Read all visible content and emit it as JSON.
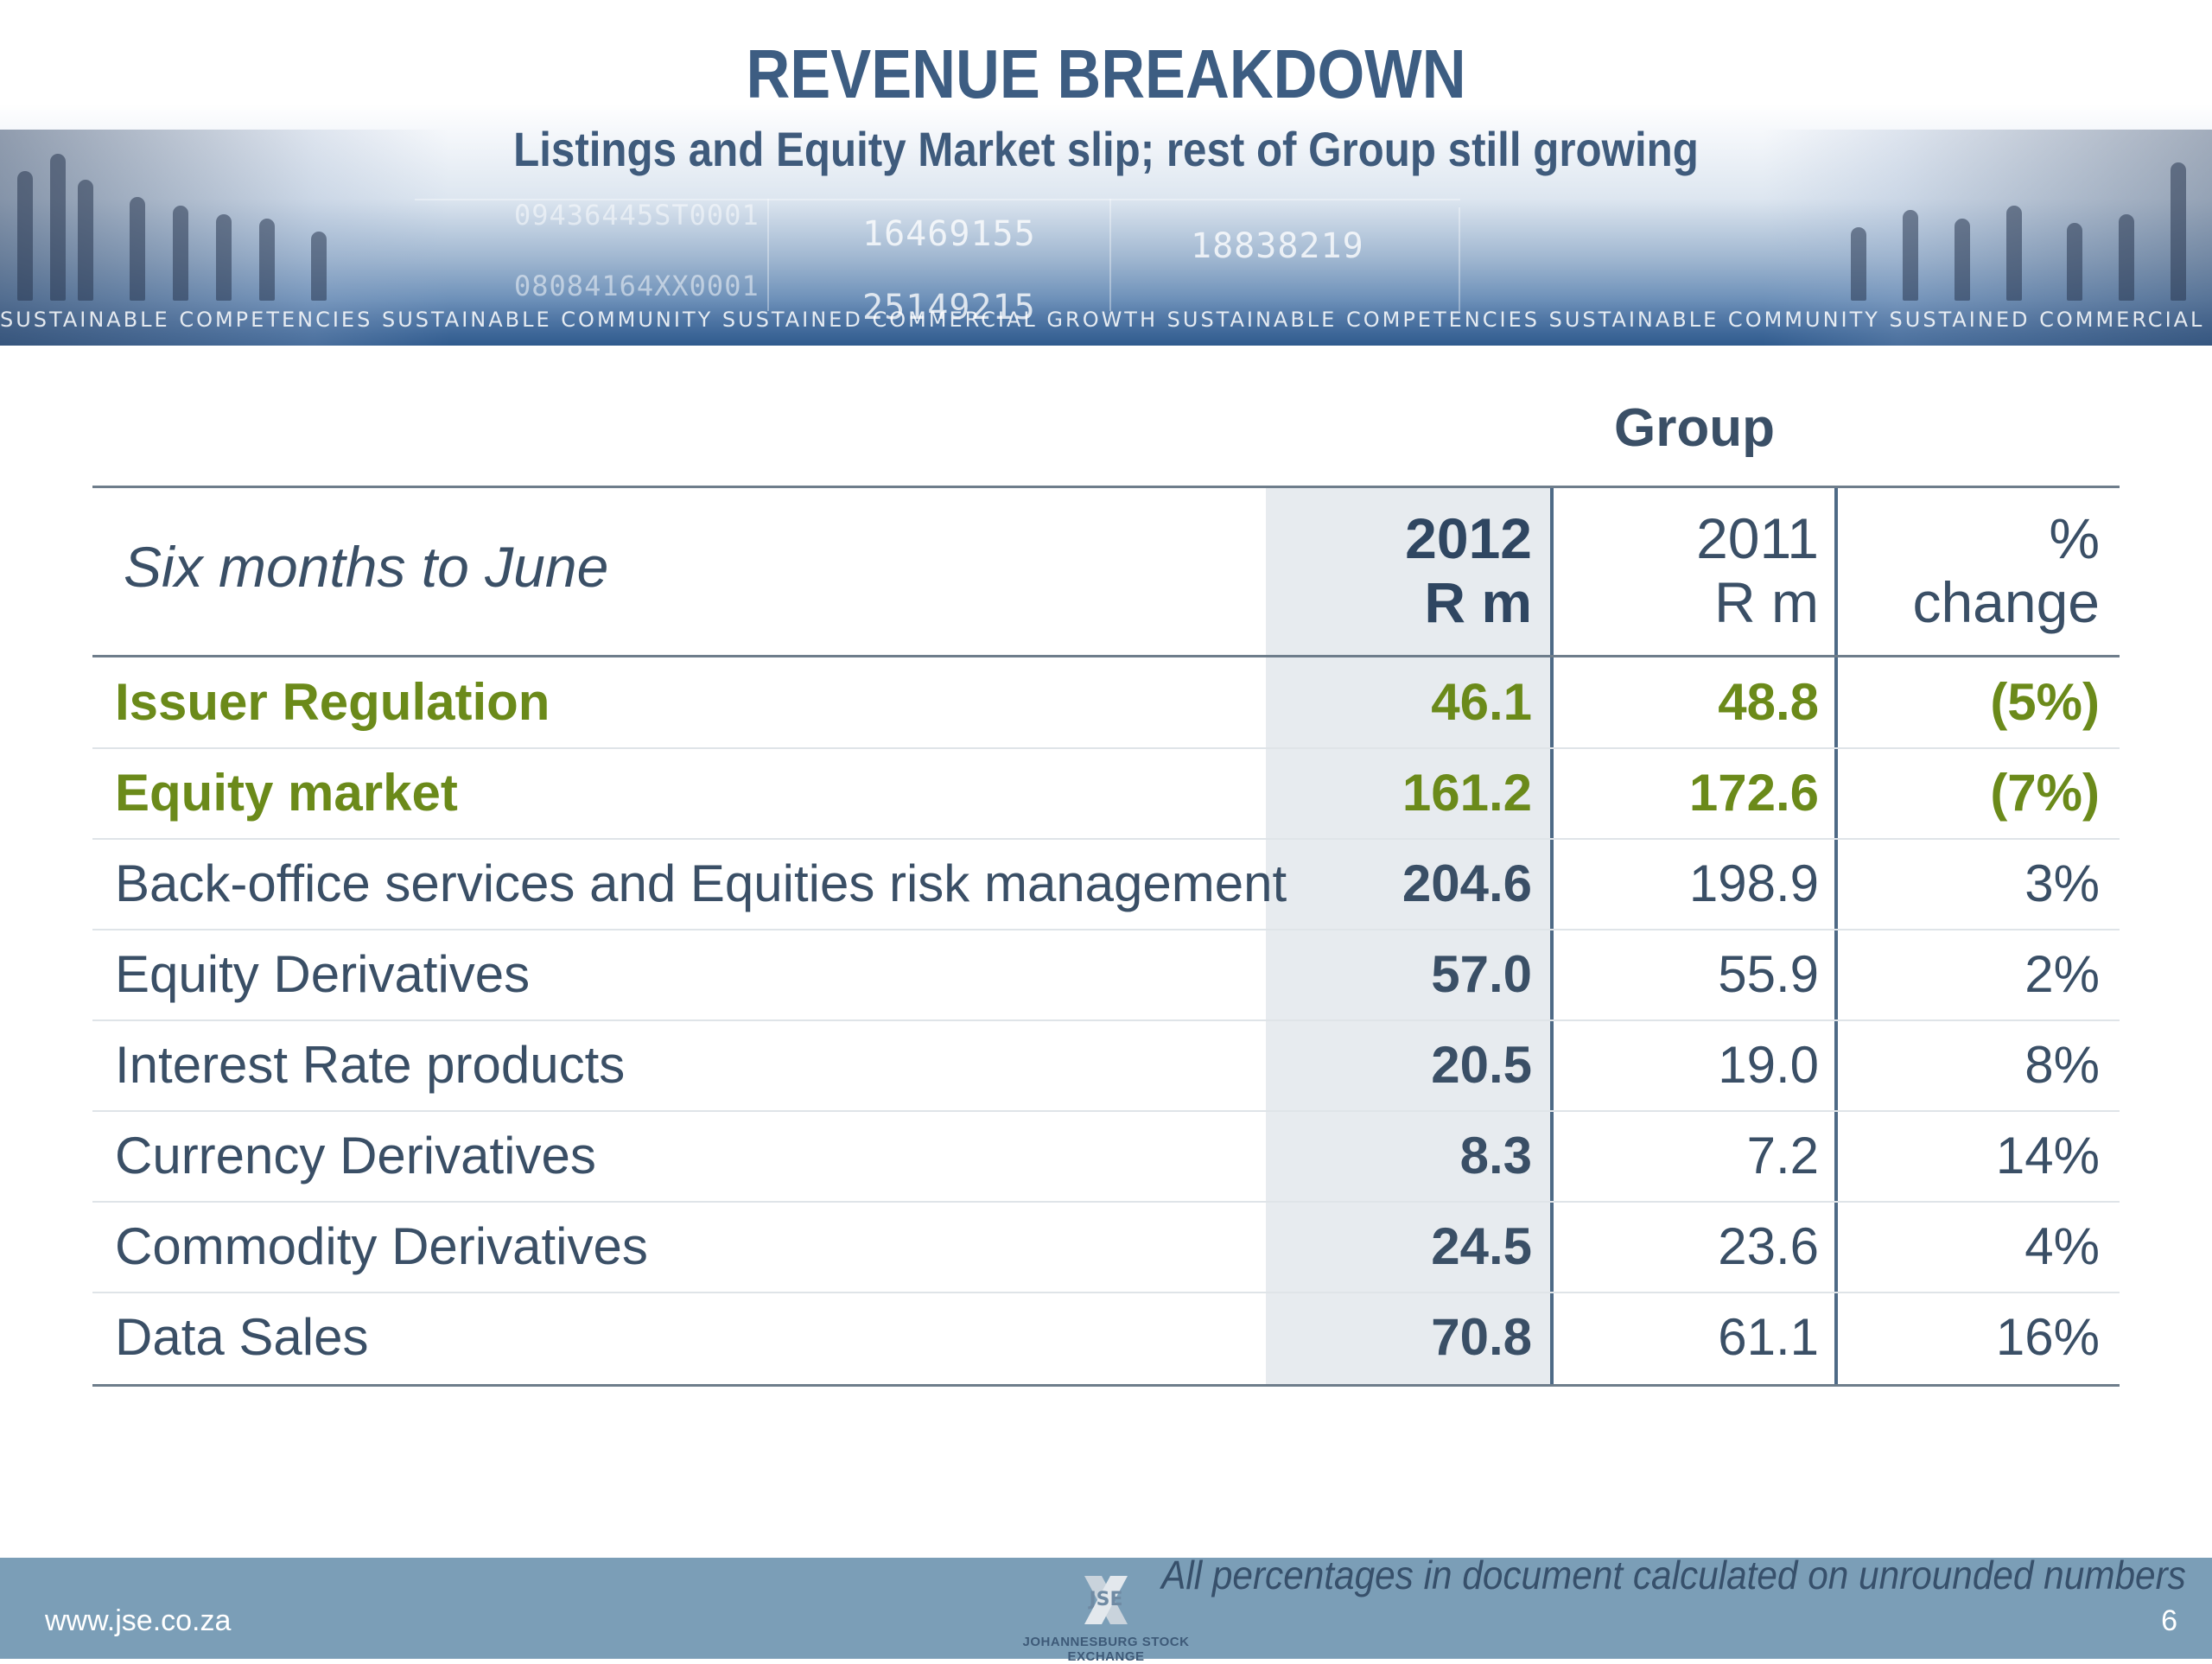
{
  "header": {
    "title": "REVENUE BREAKDOWN",
    "subtitle": "Listings and Equity Market slip; rest of Group still growing",
    "tagline": "SUSTAINABLE COMPETENCIES SUSTAINABLE COMMUNITY SUSTAINED COMMERCIAL GROWTH SUSTAINABLE COMPETENCIES SUSTAINABLE COMMUNITY SUSTAINED COMMERCIAL GROWTH",
    "ticker_numbers": [
      "16469155",
      "18838219",
      "08084164XX0001",
      "25149215",
      "09436445ST0001"
    ]
  },
  "table": {
    "group_label": "Group",
    "period_label": "Six months to June",
    "columns": [
      {
        "year": "2012",
        "unit": "R m"
      },
      {
        "year": "2011",
        "unit": "R m"
      },
      {
        "year": "%",
        "unit": "change"
      }
    ],
    "rows": [
      {
        "label": "Issuer Regulation",
        "v2012": "46.1",
        "v2011": "48.8",
        "change": "(5%)",
        "highlight": true
      },
      {
        "label": "Equity market",
        "v2012": "161.2",
        "v2011": "172.6",
        "change": "(7%)",
        "highlight": true
      },
      {
        "label": "Back-office services and Equities risk management",
        "v2012": "204.6",
        "v2011": "198.9",
        "change": "3%",
        "highlight": false
      },
      {
        "label": "Equity Derivatives",
        "v2012": "57.0",
        "v2011": "55.9",
        "change": "2%",
        "highlight": false
      },
      {
        "label": "Interest Rate products",
        "v2012": "20.5",
        "v2011": "19.0",
        "change": "8%",
        "highlight": false
      },
      {
        "label": "Currency Derivatives",
        "v2012": "8.3",
        "v2011": "7.2",
        "change": "14%",
        "highlight": false
      },
      {
        "label": "Commodity Derivatives",
        "v2012": "24.5",
        "v2011": "23.6",
        "change": "4%",
        "highlight": false
      },
      {
        "label": "Data Sales",
        "v2012": "70.8",
        "v2011": "61.1",
        "change": "16%",
        "highlight": false
      }
    ]
  },
  "footer": {
    "footnote": "All percentages in document calculated on unrounded numbers",
    "url": "www.jse.co.za",
    "page_number": "6",
    "logo_text": "JOHANNESBURG STOCK EXCHANGE",
    "logo_mark": "JSE"
  },
  "colors": {
    "title": "#3d5d82",
    "highlight_green": "#6b8a1a",
    "text": "#3a4f66",
    "footer_band": "#7b9eb7",
    "column_shade": "#e7ebef"
  }
}
